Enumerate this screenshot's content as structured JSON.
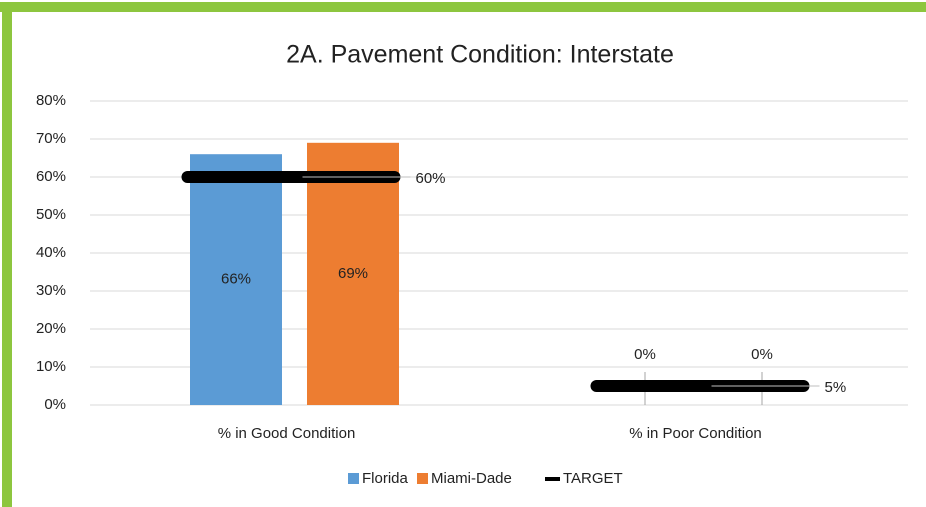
{
  "chart_data": {
    "type": "bar",
    "title": "2A. Pavement Condition: Interstate",
    "categories": [
      "% in Good Condition",
      "% in Poor Condition"
    ],
    "series": [
      {
        "name": "Florida",
        "color": "#5b9bd5",
        "values": [
          66,
          0
        ],
        "value_labels": [
          "66%",
          "0%"
        ]
      },
      {
        "name": "Miami-Dade",
        "color": "#ed7d31",
        "values": [
          69,
          0
        ],
        "value_labels": [
          "69%",
          "0%"
        ]
      },
      {
        "name": "TARGET",
        "type": "line",
        "color": "#000000",
        "values": [
          60,
          5
        ],
        "value_labels": [
          "60%",
          "5%"
        ]
      }
    ],
    "ylim": [
      0,
      80
    ],
    "yticks": [
      {
        "value": 0,
        "label": "0%"
      },
      {
        "value": 10,
        "label": "10%"
      },
      {
        "value": 20,
        "label": "20%"
      },
      {
        "value": 30,
        "label": "30%"
      },
      {
        "value": 40,
        "label": "40%"
      },
      {
        "value": 50,
        "label": "50%"
      },
      {
        "value": 60,
        "label": "60%"
      },
      {
        "value": 70,
        "label": "70%"
      },
      {
        "value": 80,
        "label": "80%"
      }
    ],
    "grid": true,
    "legend": "bottom"
  }
}
